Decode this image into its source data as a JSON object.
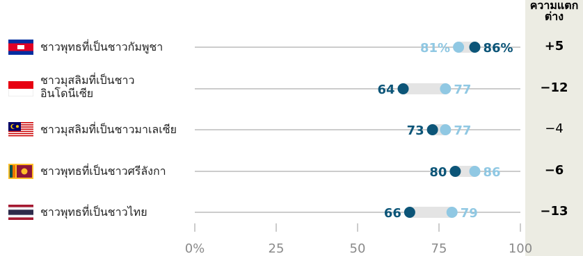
{
  "diff_header": "ความแตกต่าง",
  "colors": {
    "dark": "#0c5578",
    "light": "#90c8e3",
    "band": "#e4e4e4",
    "axis": "#9a9a9a",
    "panel": "#ecece3"
  },
  "chart_data": {
    "type": "dot",
    "xlim": [
      0,
      100
    ],
    "x_ticks": [
      "0%",
      "25",
      "50",
      "75",
      "100"
    ],
    "x_tick_values": [
      0,
      25,
      50,
      75,
      100
    ],
    "rows": [
      {
        "label": "ชาวพุทธที่เป็นชาวกัมพูชา",
        "flag": "cambodia-flag",
        "dark_value": 86,
        "light_value": 81,
        "dark_text": "86%",
        "light_text": "81%",
        "diff": "+5",
        "diff_bold": true
      },
      {
        "label": "ชาวมุสลิมที่เป็นชาวอินโดนีเซีย",
        "flag": "indonesia-flag",
        "dark_value": 64,
        "light_value": 77,
        "dark_text": "64",
        "light_text": "77",
        "diff": "−12",
        "diff_bold": true
      },
      {
        "label": "ชาวมุสลิมที่เป็นชาวมาเลเซีย",
        "flag": "malaysia-flag",
        "dark_value": 73,
        "light_value": 77,
        "dark_text": "73",
        "light_text": "77",
        "diff": "−4",
        "diff_bold": false
      },
      {
        "label": "ชาวพุทธที่เป็นชาวศรีลังกา",
        "flag": "sri-lanka-flag",
        "dark_value": 80,
        "light_value": 86,
        "dark_text": "80",
        "light_text": "86",
        "diff": "−6",
        "diff_bold": true
      },
      {
        "label": "ชาวพุทธที่เป็นชาวไทย",
        "flag": "thailand-flag",
        "dark_value": 66,
        "light_value": 79,
        "dark_text": "66",
        "light_text": "79",
        "diff": "−13",
        "diff_bold": true
      }
    ]
  }
}
